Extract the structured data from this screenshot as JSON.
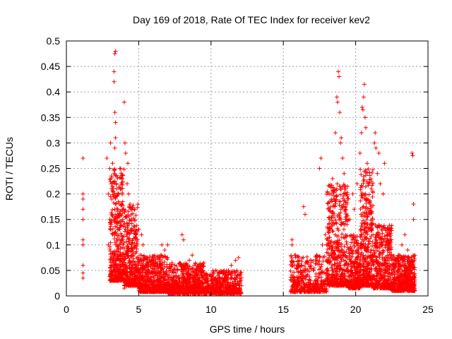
{
  "chart_data": {
    "type": "scatter",
    "title": "Day 169 of 2018, Rate Of TEC Index for receiver kev2",
    "xlabel": "GPS time / hours",
    "ylabel": "ROTI / TECUs",
    "xlim": [
      0,
      25
    ],
    "ylim": [
      0,
      0.5
    ],
    "xticks": [
      0,
      5,
      10,
      15,
      20,
      25
    ],
    "xtick_labels": [
      "0",
      "5",
      "10",
      "15",
      "20",
      "25"
    ],
    "yticks": [
      0,
      0.05,
      0.1,
      0.15,
      0.2,
      0.25,
      0.3,
      0.35,
      0.4,
      0.45,
      0.5
    ],
    "ytick_labels": [
      "0",
      "0.05",
      "0.1",
      "0.15",
      "0.2",
      "0.25",
      "0.3",
      "0.35",
      "0.4",
      "0.45",
      "0.5"
    ],
    "grid": true,
    "marker": "+",
    "color": "#ff0000",
    "series": [
      {
        "name": "ROTI",
        "points": [
          [
            1.15,
            0.27
          ],
          [
            1.15,
            0.2
          ],
          [
            1.15,
            0.19
          ],
          [
            1.15,
            0.17
          ],
          [
            1.15,
            0.15
          ],
          [
            1.15,
            0.11
          ],
          [
            1.15,
            0.1
          ],
          [
            1.15,
            0.06
          ],
          [
            1.15,
            0.045
          ],
          [
            1.15,
            0.035
          ],
          [
            2.8,
            0.27
          ],
          [
            2.9,
            0.2
          ],
          [
            2.9,
            0.1
          ],
          [
            3.0,
            0.15
          ],
          [
            3.0,
            0.25
          ],
          [
            3.05,
            0.3
          ],
          [
            3.1,
            0.04
          ],
          [
            3.1,
            0.22
          ],
          [
            3.15,
            0.16
          ],
          [
            3.2,
            0.12
          ],
          [
            3.2,
            0.26
          ],
          [
            3.3,
            0.42
          ],
          [
            3.3,
            0.44
          ],
          [
            3.35,
            0.475
          ],
          [
            3.4,
            0.48
          ],
          [
            3.35,
            0.36
          ],
          [
            3.4,
            0.34
          ],
          [
            3.4,
            0.31
          ],
          [
            3.35,
            0.29
          ],
          [
            3.4,
            0.18
          ],
          [
            3.45,
            0.22
          ],
          [
            3.5,
            0.1
          ],
          [
            3.5,
            0.06
          ],
          [
            3.3,
            0.08
          ],
          [
            3.6,
            0.2
          ],
          [
            3.7,
            0.25
          ],
          [
            3.8,
            0.18
          ],
          [
            3.9,
            0.15
          ],
          [
            4.0,
            0.38
          ],
          [
            4.05,
            0.3
          ],
          [
            4.1,
            0.28
          ],
          [
            4.2,
            0.22
          ],
          [
            4.25,
            0.26
          ],
          [
            4.3,
            0.2
          ],
          [
            4.4,
            0.18
          ],
          [
            4.5,
            0.15
          ],
          [
            4.6,
            0.13
          ],
          [
            4.7,
            0.17
          ],
          [
            4.8,
            0.12
          ],
          [
            4.9,
            0.1
          ],
          [
            4.0,
            0.015
          ],
          [
            5.1,
            0.08
          ],
          [
            5.2,
            0.12
          ],
          [
            5.3,
            0.1
          ],
          [
            5.5,
            0.06
          ],
          [
            5.7,
            0.05
          ],
          [
            6.0,
            0.07
          ],
          [
            6.3,
            0.04
          ],
          [
            6.6,
            0.1
          ],
          [
            6.8,
            0.09
          ],
          [
            7.0,
            0.1
          ],
          [
            7.2,
            0.05
          ],
          [
            7.5,
            0.06
          ],
          [
            7.9,
            0.06
          ],
          [
            8.0,
            0.12
          ],
          [
            8.1,
            0.11
          ],
          [
            8.5,
            0.07
          ],
          [
            8.7,
            0.08
          ],
          [
            9.0,
            0.05
          ],
          [
            9.3,
            0.04
          ],
          [
            9.5,
            0.065
          ],
          [
            9.8,
            0.03
          ],
          [
            10.0,
            0.04
          ],
          [
            10.3,
            0.05
          ],
          [
            10.6,
            0.035
          ],
          [
            10.9,
            0.045
          ],
          [
            11.2,
            0.05
          ],
          [
            11.4,
            0.06
          ],
          [
            11.7,
            0.07
          ],
          [
            11.9,
            0.075
          ],
          [
            12.0,
            0.04
          ],
          [
            15.6,
            0.1
          ],
          [
            15.6,
            0.11
          ],
          [
            15.8,
            0.08
          ],
          [
            16.0,
            0.06
          ],
          [
            16.1,
            0.07
          ],
          [
            16.2,
            0.05
          ],
          [
            16.4,
            0.175
          ],
          [
            16.5,
            0.16
          ],
          [
            16.6,
            0.04
          ],
          [
            16.9,
            0.07
          ],
          [
            17.1,
            0.05
          ],
          [
            17.3,
            0.08
          ],
          [
            17.5,
            0.25
          ],
          [
            17.6,
            0.27
          ],
          [
            17.7,
            0.1
          ],
          [
            17.9,
            0.12
          ],
          [
            18.0,
            0.1
          ],
          [
            18.2,
            0.15
          ],
          [
            18.3,
            0.2
          ],
          [
            18.4,
            0.23
          ],
          [
            18.5,
            0.19
          ],
          [
            18.6,
            0.32
          ],
          [
            18.7,
            0.39
          ],
          [
            18.75,
            0.38
          ],
          [
            18.8,
            0.44
          ],
          [
            18.85,
            0.43
          ],
          [
            18.9,
            0.36
          ],
          [
            18.95,
            0.3
          ],
          [
            19.0,
            0.31
          ],
          [
            19.1,
            0.27
          ],
          [
            19.2,
            0.24
          ],
          [
            19.3,
            0.21
          ],
          [
            19.4,
            0.18
          ],
          [
            19.6,
            0.15
          ],
          [
            19.8,
            0.2
          ],
          [
            19.9,
            0.17
          ],
          [
            20.1,
            0.22
          ],
          [
            20.3,
            0.28
          ],
          [
            20.4,
            0.32
          ],
          [
            20.45,
            0.37
          ],
          [
            20.5,
            0.365
          ],
          [
            20.55,
            0.39
          ],
          [
            20.6,
            0.415
          ],
          [
            20.65,
            0.35
          ],
          [
            20.7,
            0.33
          ],
          [
            20.8,
            0.26
          ],
          [
            20.9,
            0.22
          ],
          [
            21.0,
            0.18
          ],
          [
            21.1,
            0.14
          ],
          [
            21.2,
            0.12
          ],
          [
            21.3,
            0.3
          ],
          [
            21.35,
            0.32
          ],
          [
            21.4,
            0.29
          ],
          [
            21.5,
            0.24
          ],
          [
            21.6,
            0.28
          ],
          [
            21.7,
            0.22
          ],
          [
            21.9,
            0.2
          ],
          [
            22.0,
            0.26
          ],
          [
            22.1,
            0.1
          ],
          [
            22.3,
            0.08
          ],
          [
            22.5,
            0.07
          ],
          [
            22.8,
            0.06
          ],
          [
            23.0,
            0.08
          ],
          [
            23.2,
            0.1
          ],
          [
            23.4,
            0.12
          ],
          [
            23.6,
            0.09
          ],
          [
            23.8,
            0.06
          ],
          [
            23.9,
            0.28
          ],
          [
            23.95,
            0.275
          ],
          [
            24.0,
            0.18
          ],
          [
            24.0,
            0.15
          ]
        ],
        "bands": [
          {
            "x": [
              3.0,
              4.0
            ],
            "y": [
              0.03,
              0.25
            ],
            "count": 420
          },
          {
            "x": [
              4.0,
              5.0
            ],
            "y": [
              0.02,
              0.18
            ],
            "count": 360
          },
          {
            "x": [
              5.0,
              7.0
            ],
            "y": [
              0.008,
              0.08
            ],
            "count": 620
          },
          {
            "x": [
              7.0,
              9.5
            ],
            "y": [
              0.005,
              0.065
            ],
            "count": 640
          },
          {
            "x": [
              9.5,
              12.1
            ],
            "y": [
              0.005,
              0.05
            ],
            "count": 520
          },
          {
            "x": [
              15.5,
              18.0
            ],
            "y": [
              0.008,
              0.08
            ],
            "count": 380
          },
          {
            "x": [
              18.0,
              19.5
            ],
            "y": [
              0.02,
              0.22
            ],
            "count": 520
          },
          {
            "x": [
              19.5,
              20.3
            ],
            "y": [
              0.015,
              0.12
            ],
            "count": 260
          },
          {
            "x": [
              20.3,
              21.2
            ],
            "y": [
              0.02,
              0.25
            ],
            "count": 380
          },
          {
            "x": [
              21.2,
              22.5
            ],
            "y": [
              0.015,
              0.14
            ],
            "count": 420
          },
          {
            "x": [
              22.5,
              24.1
            ],
            "y": [
              0.01,
              0.08
            ],
            "count": 520
          }
        ]
      }
    ]
  }
}
